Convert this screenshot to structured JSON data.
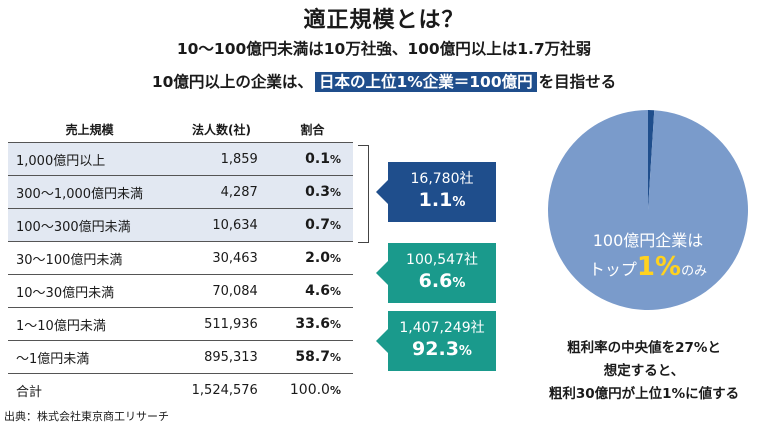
{
  "title": "適正規模とは？",
  "subtitle_line1": "10～100億円未満は10万社強、100億円以上は1.7万社弱",
  "subtitle_line2_pre": "10億円以上の企業は、",
  "subtitle_line2_highlight": "日本の上位1%企業＝100億円",
  "subtitle_line2_post": "を目指せる",
  "colors": {
    "navy": "#1f4e8c",
    "teal": "#1a9a8c",
    "pie": "#7a9bcb",
    "highlight": "#ffd21f",
    "row_bg": "#e2e8f2"
  },
  "chart_data": {
    "type": "table",
    "columns": [
      "売上規模",
      "法人数(社)",
      "割合"
    ],
    "rows": [
      {
        "category": "1,000億円以上",
        "count": "1,859",
        "share": "0.1",
        "share_unit": "%"
      },
      {
        "category": "300～1,000億円未満",
        "count": "4,287",
        "share": "0.3",
        "share_unit": "%"
      },
      {
        "category": "100～300億円未満",
        "count": "10,634",
        "share": "0.7",
        "share_unit": "%"
      },
      {
        "category": "30～100億円未満",
        "count": "30,463",
        "share": "2.0",
        "share_unit": "%"
      },
      {
        "category": "10～30億円未満",
        "count": "70,084",
        "share": "4.6",
        "share_unit": "%"
      },
      {
        "category": "1～10億円未満",
        "count": "511,936",
        "share": "33.6",
        "share_unit": "%"
      },
      {
        "category": "～1億円未満",
        "count": "895,313",
        "share": "58.7",
        "share_unit": "%"
      }
    ],
    "total": {
      "category": "合計",
      "count": "1,524,576",
      "share": "100.0",
      "share_unit": "%"
    },
    "groups": [
      {
        "count": "16,780社",
        "share": "1.1",
        "unit": "%"
      },
      {
        "count": "100,547社",
        "share": "6.6",
        "unit": "%"
      },
      {
        "count": "1,407,249社",
        "share": "92.3",
        "unit": "%"
      }
    ],
    "pie": {
      "type": "pie",
      "slices": [
        {
          "value": 1
        },
        {
          "value": 99
        }
      ],
      "label_pre": "100億円企業は",
      "label_mid": "トップ",
      "label_big": "1%",
      "label_post": "のみ"
    }
  },
  "note_lines": [
    "粗利率の中央値を27%と",
    "想定すると、",
    "粗利30億円が上位1%に値する"
  ],
  "source": "出典：株式会社東京商工リサーチ"
}
